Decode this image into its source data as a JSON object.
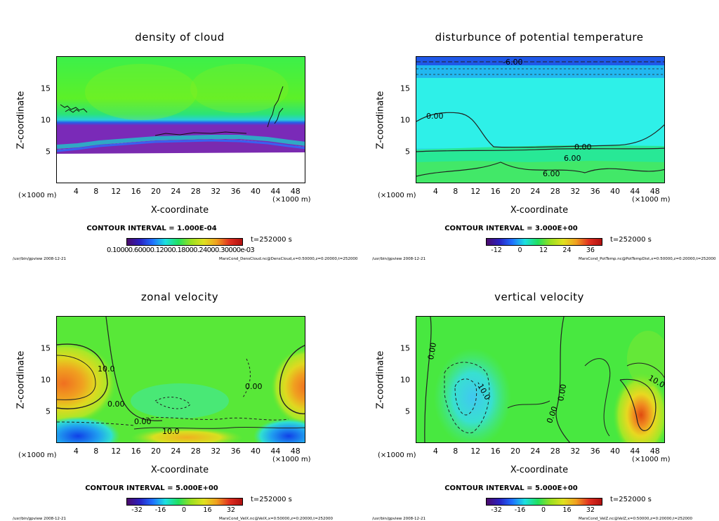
{
  "common": {
    "ylabel": "Z-coordinate",
    "xlabel": "X-coordinate",
    "unit": "(×1000 m)",
    "time": "t=252000 s",
    "x_ticks": [
      "4",
      "8",
      "12",
      "16",
      "20",
      "24",
      "28",
      "32",
      "36",
      "40",
      "44",
      "48"
    ],
    "y_ticks": [
      "5",
      "10",
      "15"
    ],
    "footer_left": "/usr/bin/gpview   2008-12-21"
  },
  "panels": [
    {
      "title": "density of cloud",
      "contour_interval": "CONTOUR INTERVAL = 1.000E-04",
      "colorbar_labels_overlap": "0.10000.60000.12000.18000.24000.30000e-03",
      "colorbar_labels": [],
      "footer_right": "MarsCond_DensCloud.nc@DensCloud,x=0:50000,z=0:20000,t=252000",
      "contour_labels": []
    },
    {
      "title": "disturbunce of potential temperature",
      "contour_interval": "CONTOUR INTERVAL = 3.000E+00",
      "colorbar_labels_overlap": "",
      "colorbar_labels": [
        "-12",
        "0",
        "12",
        "24",
        "36"
      ],
      "footer_right": "MarsCond_PotTemp.nc@PotTempDist,x=0:50000,z=0:20000,t=252000",
      "contour_labels": [
        "-6.00",
        "0.00",
        "0.00",
        "6.00",
        "6.00"
      ]
    },
    {
      "title": "zonal velocity",
      "contour_interval": "CONTOUR INTERVAL = 5.000E+00",
      "colorbar_labels_overlap": "",
      "colorbar_labels": [
        "-32",
        "-16",
        "0",
        "16",
        "32"
      ],
      "footer_right": "MarsCond_VelX.nc@VelX,x=0:50000,z=0:20000,t=252000",
      "contour_labels": [
        "10.0",
        "0.00",
        "0.00",
        "0.00",
        "10.0"
      ]
    },
    {
      "title": "vertical velocity",
      "contour_interval": "CONTOUR INTERVAL = 5.000E+00",
      "colorbar_labels_overlap": "",
      "colorbar_labels": [
        "-32",
        "-16",
        "0",
        "16",
        "32"
      ],
      "footer_right": "MarsCond_VelZ.nc@VelZ,x=0:50000,z=0:20000,t=252000",
      "contour_labels": [
        "0.00",
        "-10.0",
        "0.00",
        "0.00",
        "10.0"
      ]
    }
  ],
  "chart_data": [
    {
      "type": "heatmap",
      "title": "density of cloud",
      "xlabel": "X-coordinate",
      "ylabel": "Z-coordinate",
      "xlim": [
        0,
        50
      ],
      "ylim": [
        0,
        20
      ],
      "description_values": {
        "colorbar_min": 0.0001,
        "colorbar_max": 0.0003,
        "contour_interval": 0.0001
      }
    },
    {
      "type": "heatmap",
      "title": "disturbunce of potential temperature",
      "xlabel": "X-coordinate",
      "ylabel": "Z-coordinate",
      "xlim": [
        0,
        50
      ],
      "ylim": [
        0,
        20
      ],
      "colorbar_ticks": [
        -12,
        0,
        12,
        24,
        36
      ],
      "contour_interval": 3.0
    },
    {
      "type": "heatmap",
      "title": "zonal velocity",
      "xlabel": "X-coordinate",
      "ylabel": "Z-coordinate",
      "xlim": [
        0,
        50
      ],
      "ylim": [
        0,
        20
      ],
      "colorbar_ticks": [
        -32,
        -16,
        0,
        16,
        32
      ],
      "contour_interval": 5.0
    },
    {
      "type": "heatmap",
      "title": "vertical velocity",
      "xlabel": "X-coordinate",
      "ylabel": "Z-coordinate",
      "xlim": [
        0,
        50
      ],
      "ylim": [
        0,
        20
      ],
      "colorbar_ticks": [
        -32,
        -16,
        0,
        16,
        32
      ],
      "contour_interval": 5.0
    }
  ]
}
